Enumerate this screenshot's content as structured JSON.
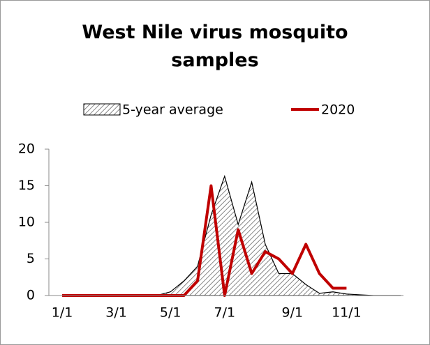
{
  "chart_data": {
    "type": "line",
    "title": "West Nile virus mosquito samples",
    "categories": [
      "1/1",
      null,
      null,
      null,
      "3/1",
      null,
      null,
      null,
      "5/1",
      null,
      null,
      null,
      "7/1",
      null,
      null,
      null,
      null,
      "9/1",
      null,
      null,
      null,
      "11/1",
      null,
      null,
      null,
      null
    ],
    "series": [
      {
        "name": "5-year average",
        "type": "area",
        "color": "#000000",
        "values": [
          0,
          0,
          0,
          0,
          0,
          0,
          0,
          0,
          0.5,
          2,
          4,
          11,
          16.3,
          9.7,
          15.5,
          7,
          3,
          3,
          1.5,
          0.3,
          0.5,
          0.2,
          0.1,
          0,
          0,
          0
        ]
      },
      {
        "name": "2020",
        "type": "line",
        "color": "#c00000",
        "values": [
          0,
          0,
          0,
          0,
          0,
          0,
          0,
          0,
          0,
          0,
          2,
          15,
          0,
          9,
          3,
          6,
          5,
          3,
          7,
          3,
          1,
          1,
          null,
          null,
          null,
          null
        ]
      }
    ],
    "ylim": [
      0,
      20
    ],
    "yticks": [
      0,
      5,
      10,
      15,
      20
    ]
  }
}
